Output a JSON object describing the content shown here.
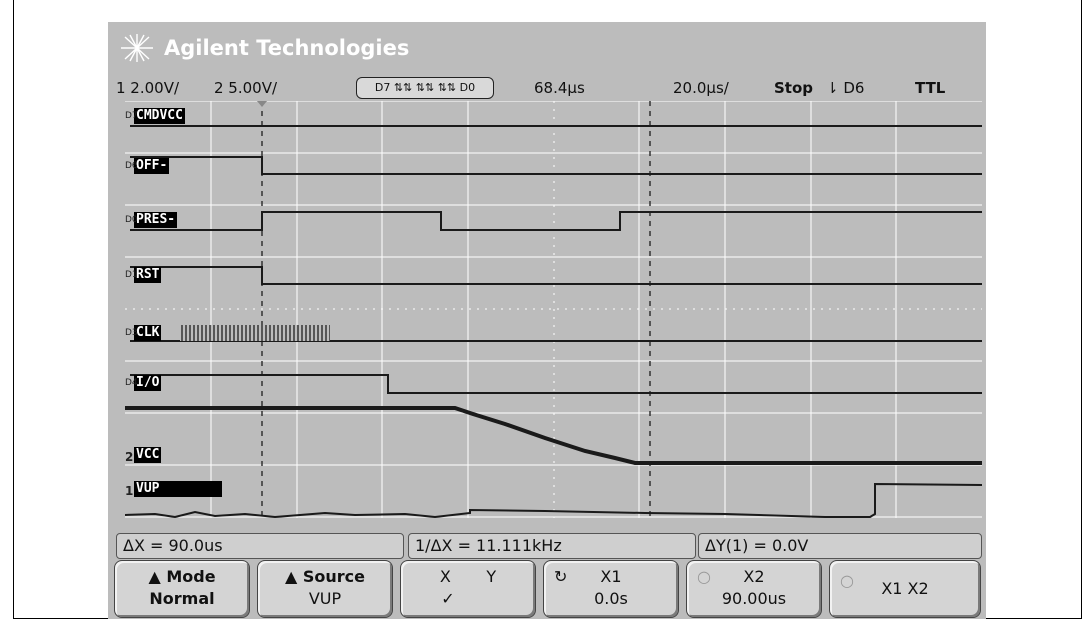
{
  "header": {
    "brand": "Agilent Technologies"
  },
  "status": {
    "ch1_scale": "1 2.00V/",
    "ch2_scale": "2 5.00V/",
    "pod": "D7 ⇅⇅ ⇅⇅ ⇅⇅ D0",
    "trigger_delay": "68.4µs",
    "timebase": "20.0µs/",
    "run_state": "Stop",
    "trigger_source": "⇂ D6",
    "threshold": "TTL"
  },
  "channels": [
    {
      "num": "D7",
      "label": "CMDVCC"
    },
    {
      "num": "D6",
      "label": "OFF-"
    },
    {
      "num": "D0",
      "label": "PRES-"
    },
    {
      "num": "D1",
      "label": "RST"
    },
    {
      "num": "D3",
      "label": "CLK"
    },
    {
      "num": "D4",
      "label": "I/O"
    },
    {
      "num": "2",
      "label": "VCC"
    },
    {
      "num": "1",
      "label": "VUP"
    }
  ],
  "measurements": {
    "delta_x": "ΔX = 90.0us",
    "inv_delta_x": "1/ΔX = 11.111kHz",
    "delta_y": "ΔY(1) = 0.0V"
  },
  "softkeys": {
    "mode_title": "Mode",
    "mode_value": "Normal",
    "source_title": "Source",
    "source_value": "VUP",
    "xy_x": "X",
    "xy_y": "Y",
    "xy_check": "✓",
    "x1_title": "X1",
    "x1_value": "0.0s",
    "x2_title": "X2",
    "x2_value": "90.00us",
    "x1x2": "X1 X2"
  },
  "cursors": {
    "x1": "0.0s",
    "x2": "90.00us"
  },
  "colors": {
    "screen": "#bcbcbc",
    "trace": "#1a1a1a",
    "grid": "#ffffff",
    "label_bg": "#000000"
  }
}
